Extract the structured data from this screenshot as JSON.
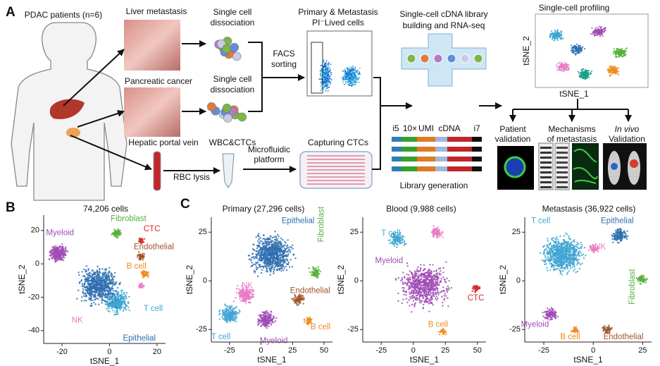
{
  "panel_a": {
    "label": "A",
    "patients": "PDAC patients (n=6)",
    "liver_metastasis": "Liver metastasis",
    "pancreatic_cancer": "Pancreatic cancer",
    "hepatic_portal_vein": "Hepatic portal vein",
    "dissociation_1": [
      "Single cell",
      "dissociation"
    ],
    "dissociation_2": [
      "Single cell",
      "dissociation"
    ],
    "wbc_ctcs": "WBC&CTCs",
    "rbc_lysis": "RBC lysis",
    "microfluidic": [
      "Microfluidic",
      "platform"
    ],
    "facs": [
      "FACS",
      "sorting"
    ],
    "primary_metastasis": [
      "Primary & Metastasis",
      "PI⁻Lived cells"
    ],
    "capturing_ctcs": "Capturing CTCs",
    "library_building": [
      "Single-cell cDNA library",
      "building and RNA-seq"
    ],
    "profiling": "Single-cell profiling",
    "profiling_ylabel": "tSNE_2",
    "profiling_xlabel": "tSNE_1",
    "library_parts": [
      "i5",
      "10×",
      "UMI",
      "cDNA",
      "i7"
    ],
    "library_generation": "Library generation",
    "patient_validation": [
      "Patient",
      "validation"
    ],
    "mechanisms": [
      "Mechanisms",
      "of metastasis"
    ],
    "in_vivo": [
      "In vivo",
      "Validation"
    ]
  },
  "panel_b": {
    "label": "B",
    "plots": [
      {
        "title": "74,206 cells",
        "xlabel": "tSNE_1",
        "ylabel": "tSNE_2",
        "xticks": [
          -20,
          0,
          20
        ],
        "yticks": [
          20,
          0,
          -20,
          -40
        ],
        "clusters": [
          {
            "label": "Myeloid",
            "color": "#a04cb5"
          },
          {
            "label": "Fibroblast",
            "color": "#55b03a"
          },
          {
            "label": "CTC",
            "color": "#d42a2a"
          },
          {
            "label": "Endothelial",
            "color": "#a0542a"
          },
          {
            "label": "B cell",
            "color": "#f08a1c"
          },
          {
            "label": "NK",
            "color": "#e87bc6"
          },
          {
            "label": "T cell",
            "color": "#3fa6d2"
          },
          {
            "label": "Epithelial",
            "color": "#2f6fb0"
          }
        ]
      }
    ]
  },
  "panel_c": {
    "label": "C",
    "plots": [
      {
        "title": "Primary (27,296 cells)",
        "xlabel": "tSNE_1",
        "ylabel": "tSNE_2",
        "xticks": [
          -25,
          0,
          25,
          50
        ],
        "yticks": [
          25,
          0,
          -25
        ],
        "clusters": [
          {
            "label": "Epithelial",
            "color": "#2f6fb0"
          },
          {
            "label": "Fibroblast",
            "color": "#55b03a"
          },
          {
            "label": "NK",
            "color": "#e87bc6"
          },
          {
            "label": "Endothelial",
            "color": "#a0542a"
          },
          {
            "label": "B cell",
            "color": "#f08a1c"
          },
          {
            "label": "T cell",
            "color": "#3fa6d2"
          },
          {
            "label": "Myeloid",
            "color": "#a04cb5"
          }
        ]
      },
      {
        "title": "Blood (9,988 cells)",
        "xlabel": "tSNE_1",
        "ylabel": "tSNE_2",
        "xticks": [
          -25,
          0,
          25,
          50
        ],
        "yticks": [
          25,
          0,
          -25
        ],
        "clusters": [
          {
            "label": "T cell",
            "color": "#3fa6d2"
          },
          {
            "label": "NK",
            "color": "#e87bc6"
          },
          {
            "label": "Myeloid",
            "color": "#a04cb5"
          },
          {
            "label": "CTC",
            "color": "#d42a2a"
          },
          {
            "label": "B cell",
            "color": "#f08a1c"
          }
        ]
      },
      {
        "title": "Metastasis (36,922 cells)",
        "xlabel": "tSNE_1",
        "ylabel": "tSNE_2",
        "xticks": [
          -25,
          0,
          25
        ],
        "yticks": [
          25,
          0,
          -25
        ],
        "clusters": [
          {
            "label": "T cell",
            "color": "#3fa6d2"
          },
          {
            "label": "Epithelial",
            "color": "#2f6fb0"
          },
          {
            "label": "NK",
            "color": "#e87bc6"
          },
          {
            "label": "Fibroblast",
            "color": "#55b03a"
          },
          {
            "label": "Myeloid",
            "color": "#a04cb5"
          },
          {
            "label": "B cell",
            "color": "#f08a1c"
          },
          {
            "label": "Endothelial",
            "color": "#a0542a"
          }
        ]
      }
    ]
  }
}
